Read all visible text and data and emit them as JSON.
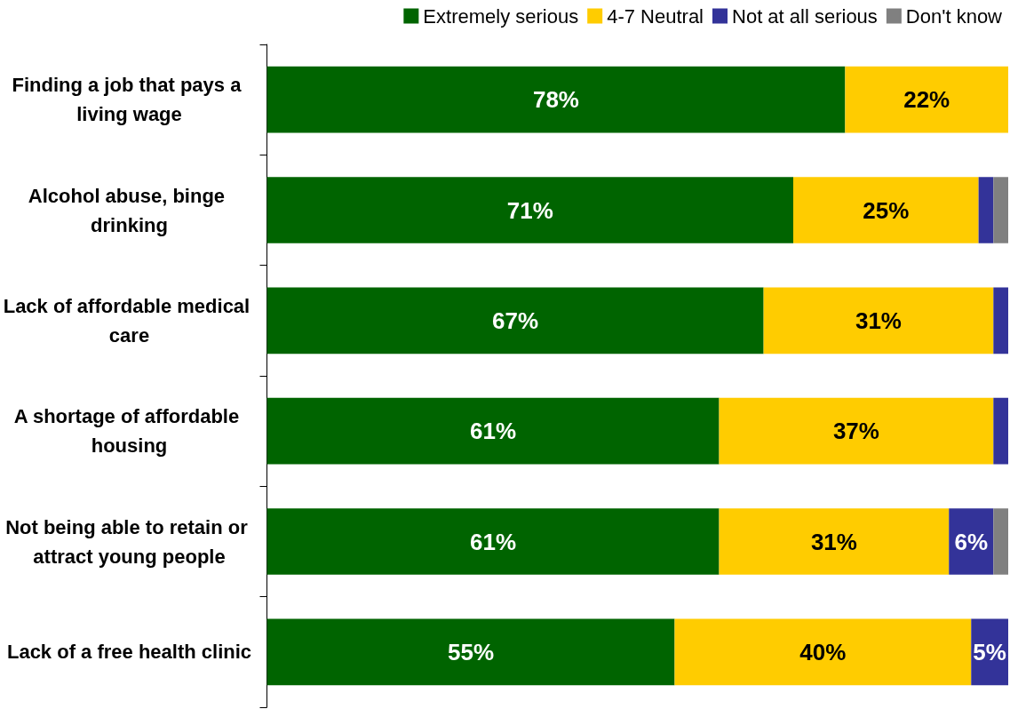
{
  "chart_data": {
    "type": "bar",
    "orientation": "horizontal",
    "stacked": true,
    "legend": "top right",
    "tick_labels": "y",
    "grid": false,
    "xlim": [
      0,
      100
    ],
    "categories": [
      "Finding a job that pays a living wage",
      "Alcohol abuse, binge drinking",
      "Lack of affordable medical care",
      "A shortage of affordable housing",
      "Not being able to retain or attract young people",
      "Lack of a free health clinic"
    ],
    "series": [
      {
        "name": "Extremely serious",
        "color": "#006400",
        "values": [
          78,
          71,
          67,
          61,
          61,
          55
        ],
        "value_labels": [
          "78%",
          "71%",
          "67%",
          "61%",
          "61%",
          "55%"
        ]
      },
      {
        "name": "4-7 Neutral",
        "color": "#ffcc00",
        "values": [
          22,
          25,
          31,
          37,
          31,
          40
        ],
        "value_labels": [
          "22%",
          "25%",
          "31%",
          "37%",
          "31%",
          "40%"
        ]
      },
      {
        "name": "Not at all serious",
        "color": "#333399",
        "values": [
          0,
          2,
          2,
          2,
          6,
          5
        ],
        "value_labels": [
          null,
          null,
          null,
          null,
          "6%",
          "5%"
        ]
      },
      {
        "name": "Don't know",
        "color": "#808080",
        "values": [
          0,
          2,
          0,
          0,
          2,
          0
        ]
      }
    ]
  }
}
